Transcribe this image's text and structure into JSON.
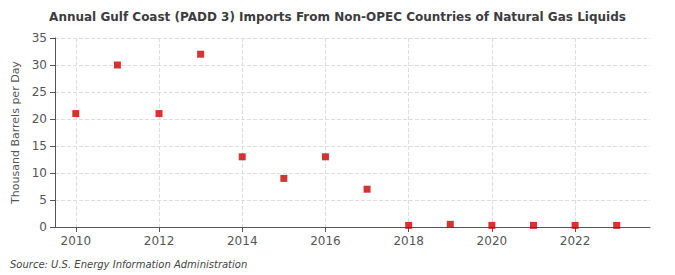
{
  "chart_data": {
    "type": "scatter",
    "title": "Annual Gulf Coast (PADD 3) Imports From Non-OPEC Countries of Natural Gas Liquids",
    "ylabel": "Thousand Barrels per Day",
    "annotation": "Source: U.S. Energy Information Administration",
    "x": [
      2010,
      2011,
      2012,
      2013,
      2014,
      2015,
      2016,
      2017,
      2018,
      2019,
      2020,
      2021,
      2022,
      2023
    ],
    "values": [
      21,
      30,
      21,
      32,
      13,
      9,
      13,
      7,
      0.3,
      0.5,
      0.3,
      0.3,
      0.3,
      0.3
    ],
    "color": "#cc0000",
    "marker": "square",
    "xlim": [
      2009.5,
      2023.8
    ],
    "ylim": [
      0,
      35
    ],
    "xticks": [
      2010,
      2012,
      2014,
      2016,
      2018,
      2020,
      2022
    ],
    "yticks": [
      0,
      5,
      10,
      15,
      20,
      25,
      30,
      35
    ],
    "grid": true
  }
}
